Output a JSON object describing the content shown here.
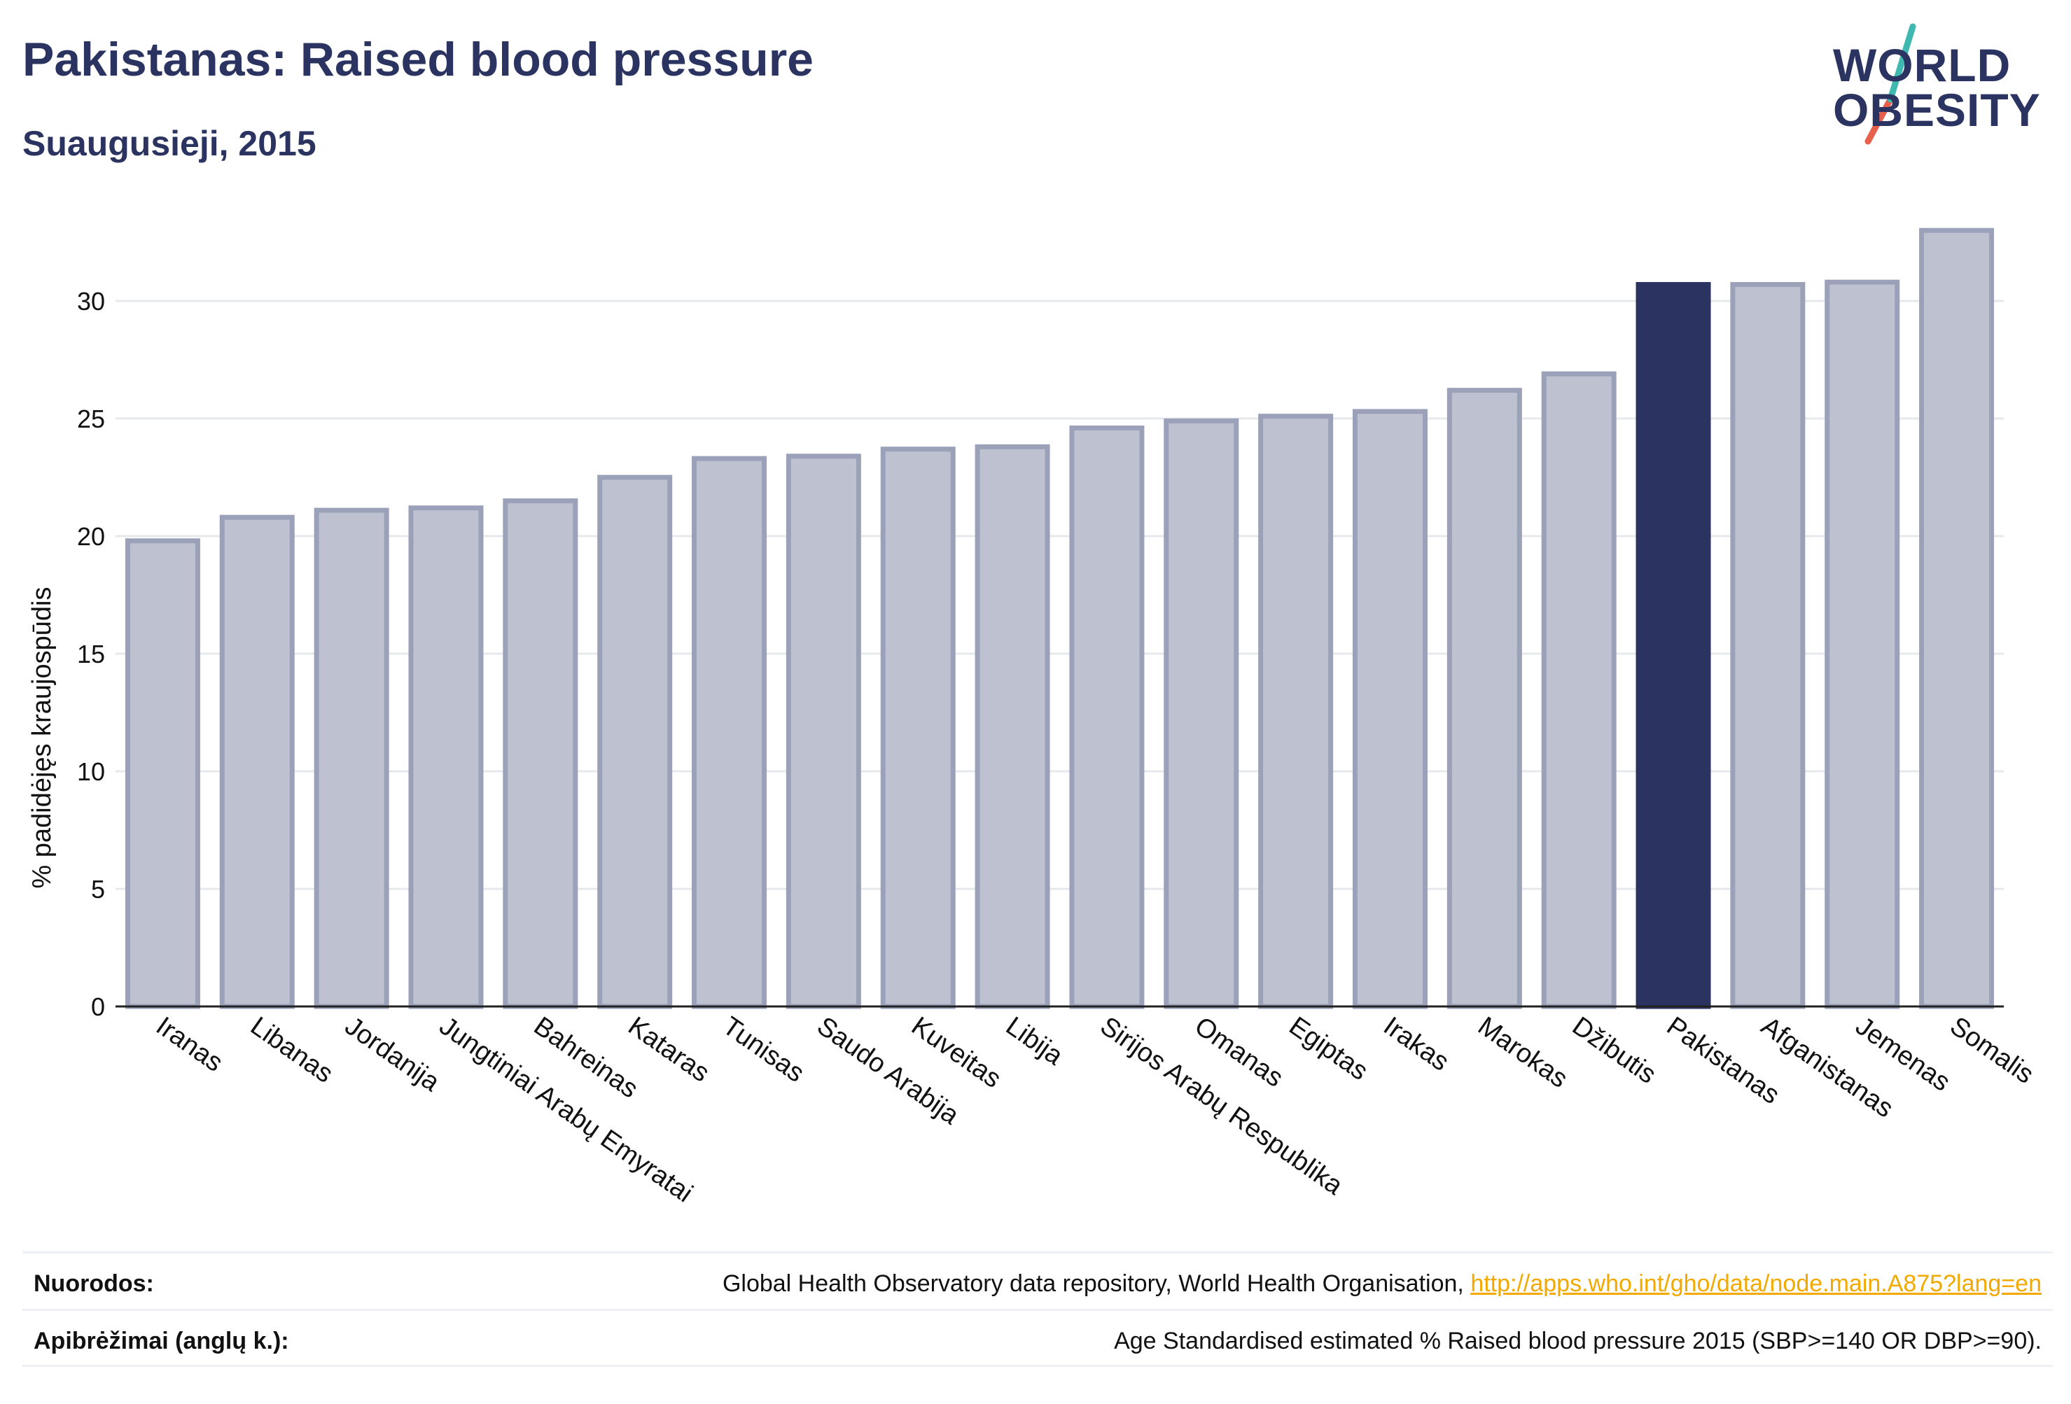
{
  "header": {
    "title": "Pakistanas: Raised blood pressure",
    "subtitle": "Suaugusieji, 2015"
  },
  "logo": {
    "line1": "WORLD",
    "line2": "OBESITY",
    "colors": {
      "text": "#2b3461",
      "slash_top": "#3fb8b0",
      "slash_bottom": "#e8604c"
    }
  },
  "chart_data": {
    "type": "bar",
    "ylabel": "% padidėjęs kraujospūdis",
    "ylim": [
      0,
      34
    ],
    "yticks": [
      0,
      5,
      10,
      15,
      20,
      25,
      30
    ],
    "grid": true,
    "categories": [
      "Iranas",
      "Libanas",
      "Jordanija",
      "Jungtiniai Arabų Emyratai",
      "Bahreinas",
      "Kataras",
      "Tunisas",
      "Saudo Arabija",
      "Kuveitas",
      "Libija",
      "Sirijos Arabų Respublika",
      "Omanas",
      "Egiptas",
      "Irakas",
      "Marokas",
      "Džibutis",
      "Pakistanas",
      "Afganistanas",
      "Jemenas",
      "Somalis"
    ],
    "values": [
      19.8,
      20.8,
      21.1,
      21.2,
      21.5,
      22.5,
      23.3,
      23.4,
      23.7,
      23.8,
      24.6,
      24.9,
      25.1,
      25.3,
      26.2,
      26.9,
      30.7,
      30.7,
      30.8,
      33.0
    ],
    "highlight": "Pakistanas",
    "colors": {
      "bar": "#bec2d0",
      "bar_border": "#9ba1b8",
      "highlight": "#2b3461",
      "grid": "#e6e8ee",
      "axis": "#222222"
    }
  },
  "footer": {
    "sources_label": "Nuorodos:",
    "sources_text": "Global Health Observatory data repository, World Health Organisation, ",
    "sources_link": "http://apps.who.int/gho/data/node.main.A875?lang=en",
    "definitions_label": "Apibrėžimai (anglų k.):",
    "definitions_text": "Age Standardised estimated % Raised blood pressure 2015 (SBP>=140 OR DBP>=90)."
  }
}
